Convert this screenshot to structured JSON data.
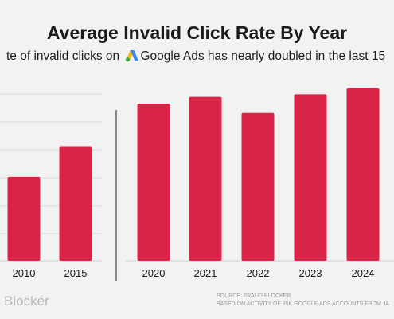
{
  "chart_data": {
    "type": "bar",
    "title": "Average Invalid Click Rate By Year",
    "subtitle_before": "te of invalid clicks on",
    "subtitle_after": "Google Ads has nearly doubled in the last 15",
    "categories": [
      "2010",
      "2015",
      "2020",
      "2021",
      "2022",
      "2023",
      "2024"
    ],
    "values": [
      6.3,
      8.6,
      11.8,
      12.3,
      11.1,
      12.5,
      13.0
    ],
    "ylim": [
      0,
      13.0
    ],
    "grid": true,
    "xlabel": "",
    "ylabel": "",
    "bar_color": "#d92347"
  },
  "brand": "Blocker",
  "source_line1": "SOURCE: FRAUD BLOCKER",
  "source_line2": "BASED ON ACTIVITY OF 85K GOOGLE ADS ACCOUNTS FROM JA",
  "icons": {
    "google_ads": "google-ads-icon"
  }
}
